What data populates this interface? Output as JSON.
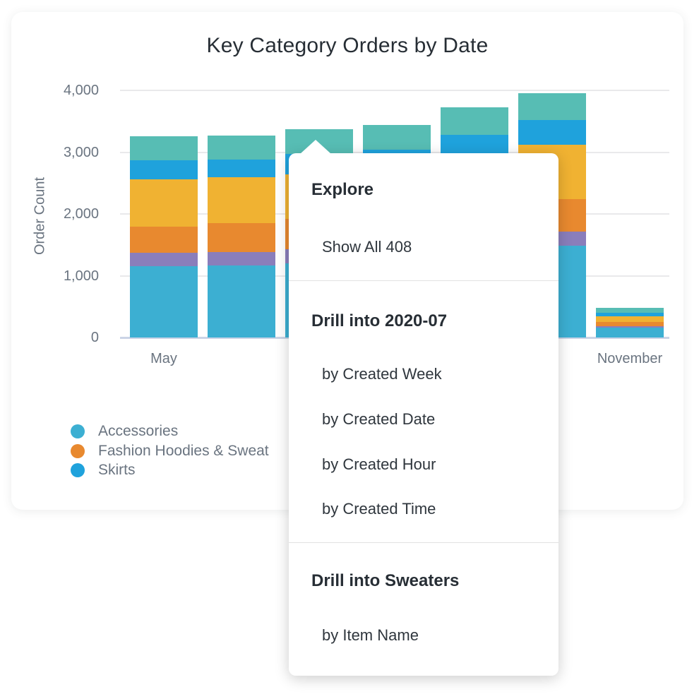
{
  "card": {
    "title": "Key Category Orders by Date"
  },
  "chart_data": {
    "type": "bar",
    "stacked": true,
    "title": "Key Category Orders by Date",
    "xlabel": "",
    "ylabel": "Order Count",
    "ylim": [
      0,
      4000
    ],
    "yticks": [
      0,
      1000,
      2000,
      3000,
      4000
    ],
    "ytick_labels": [
      "0",
      "1,000",
      "2,000",
      "3,000",
      "4,000"
    ],
    "grid": "horizontal",
    "legend_position": "bottom-left",
    "categories": [
      "May",
      "",
      "",
      "",
      "",
      "",
      "November"
    ],
    "drill_category_label": "2020-07",
    "series": [
      {
        "name": "Accessories",
        "color": "#3cafd2",
        "values": [
          1150,
          1165,
          1200,
          1220,
          1300,
          1490,
          155
        ]
      },
      {
        "name": null,
        "color": "#8a7ebb",
        "values": [
          220,
          215,
          230,
          220,
          230,
          230,
          25
        ]
      },
      {
        "name": "Fashion Hoodies & Sweat",
        "color": "#e8892f",
        "values": [
          420,
          470,
          490,
          460,
          500,
          525,
          75
        ]
      },
      {
        "name": null,
        "color": "#f0b232",
        "values": [
          770,
          745,
          720,
          790,
          850,
          870,
          90
        ]
      },
      {
        "name": "Skirts",
        "color": "#1fa2dc",
        "values": [
          310,
          285,
          330,
          350,
          400,
          400,
          55
        ]
      },
      {
        "name": null,
        "color": "#57bdb4",
        "values": [
          390,
          390,
          405,
          400,
          450,
          445,
          75
        ]
      }
    ]
  },
  "legend": {
    "items": [
      {
        "label": "Accessories",
        "color": "#3cafd2"
      },
      {
        "label": "Fashion Hoodies & Sweat",
        "color": "#e8892f"
      },
      {
        "label": "Skirts",
        "color": "#1fa2dc"
      }
    ]
  },
  "menu": {
    "sections": [
      {
        "header": "Explore",
        "items": [
          "Show All 408"
        ]
      },
      {
        "header": "Drill into 2020-07",
        "items": [
          "by Created Week",
          "by Created Date",
          "by Created Hour",
          "by Created Time"
        ]
      },
      {
        "header": "Drill into Sweaters",
        "items": [
          "by Item Name"
        ]
      }
    ]
  },
  "colors": {
    "grid": "#e9e9eb",
    "baseline": "#cbd4e6",
    "axis_text": "#6a7480",
    "title_text": "#272e35",
    "menu_header_text": "#272e35",
    "menu_item_text": "#2f363d",
    "divider": "#e2e2e2"
  }
}
